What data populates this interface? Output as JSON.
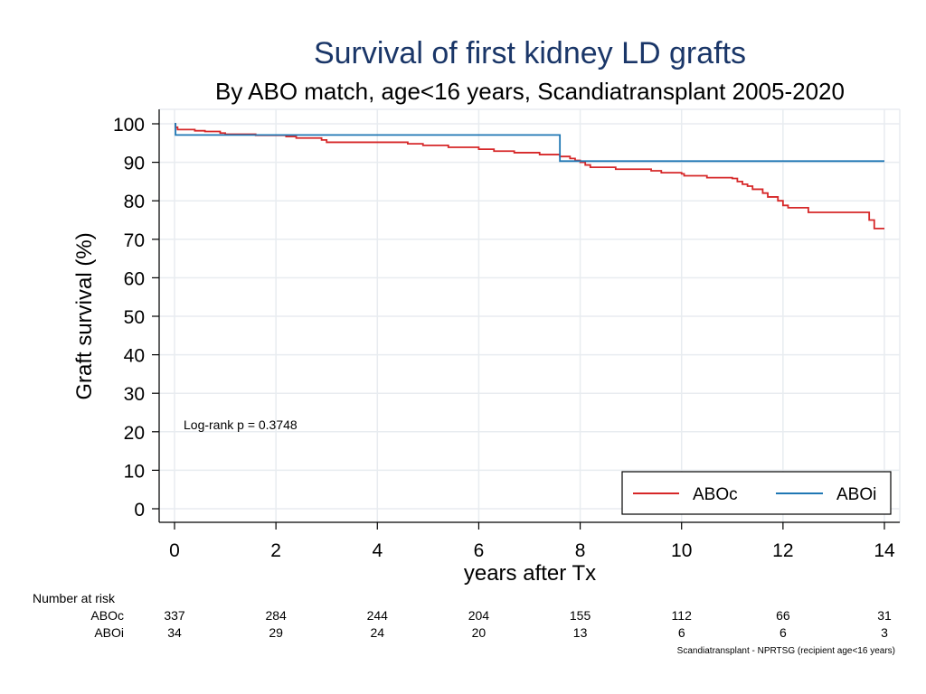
{
  "chart_data": {
    "type": "line",
    "title": "Survival of first kidney LD grafts",
    "subtitle": "By ABO match, age<16 years, Scandiatransplant 2005-2020",
    "xlabel": "years after Tx",
    "ylabel": "Graft survival (%)",
    "xlim": [
      0,
      14
    ],
    "ylim": [
      0,
      100
    ],
    "x_ticks": [
      "0",
      "2",
      "4",
      "6",
      "8",
      "10",
      "12",
      "14"
    ],
    "x_tick_values": [
      0,
      2,
      4,
      6,
      8,
      10,
      12,
      14
    ],
    "y_ticks": [
      "0",
      "10",
      "20",
      "30",
      "40",
      "50",
      "60",
      "70",
      "80",
      "90",
      "100"
    ],
    "y_tick_values": [
      0,
      10,
      20,
      30,
      40,
      50,
      60,
      70,
      80,
      90,
      100
    ],
    "grid": true,
    "legend_position": "bottom-right",
    "annotation": "Log-rank p = 0.3748",
    "series": [
      {
        "name": "ABOc",
        "color": "#d62728",
        "step": true,
        "points": [
          [
            0,
            100
          ],
          [
            0.02,
            99.1
          ],
          [
            0.06,
            98.5
          ],
          [
            0.4,
            98.2
          ],
          [
            0.6,
            98.0
          ],
          [
            0.9,
            97.6
          ],
          [
            1.0,
            97.3
          ],
          [
            1.6,
            97.0
          ],
          [
            2.2,
            96.7
          ],
          [
            2.4,
            96.3
          ],
          [
            2.9,
            95.8
          ],
          [
            3.0,
            95.2
          ],
          [
            4.6,
            94.8
          ],
          [
            4.9,
            94.4
          ],
          [
            5.4,
            93.9
          ],
          [
            6.0,
            93.4
          ],
          [
            6.3,
            92.9
          ],
          [
            6.7,
            92.5
          ],
          [
            7.2,
            92.0
          ],
          [
            7.6,
            91.5
          ],
          [
            7.8,
            91.0
          ],
          [
            7.9,
            90.5
          ],
          [
            8.0,
            90.0
          ],
          [
            8.1,
            89.3
          ],
          [
            8.2,
            88.7
          ],
          [
            8.7,
            88.2
          ],
          [
            9.4,
            87.8
          ],
          [
            9.6,
            87.3
          ],
          [
            10.0,
            87.0
          ],
          [
            10.05,
            86.5
          ],
          [
            10.5,
            86.0
          ],
          [
            11.0,
            85.8
          ],
          [
            11.1,
            85.0
          ],
          [
            11.2,
            84.3
          ],
          [
            11.3,
            83.8
          ],
          [
            11.4,
            83.0
          ],
          [
            11.6,
            82.0
          ],
          [
            11.7,
            81.0
          ],
          [
            11.9,
            80.0
          ],
          [
            12.0,
            78.8
          ],
          [
            12.1,
            78.2
          ],
          [
            12.5,
            77.0
          ],
          [
            13.7,
            75.0
          ],
          [
            13.8,
            72.8
          ],
          [
            14.0,
            72.8
          ]
        ]
      },
      {
        "name": "ABOi",
        "color": "#1f77b4",
        "step": true,
        "points": [
          [
            0,
            100
          ],
          [
            0.02,
            97.1
          ],
          [
            7.6,
            97.1
          ],
          [
            7.6,
            90.3
          ],
          [
            14.0,
            90.3
          ]
        ]
      }
    ]
  },
  "risk_table": {
    "header": "Number at risk",
    "time_points": [
      0,
      2,
      4,
      6,
      8,
      10,
      12,
      14
    ],
    "rows": [
      {
        "label": "ABOc",
        "values": [
          "337",
          "284",
          "244",
          "204",
          "155",
          "112",
          "66",
          "31"
        ]
      },
      {
        "label": "ABOi",
        "values": [
          "34",
          "29",
          "24",
          "20",
          "13",
          "6",
          "6",
          "3"
        ]
      }
    ]
  },
  "footnote": "Scandiatransplant - NPRTSG (recipient age<16 years)",
  "colors": {
    "title": "#1a3668",
    "grid": "#e8ecf0",
    "axis": "#000000"
  }
}
